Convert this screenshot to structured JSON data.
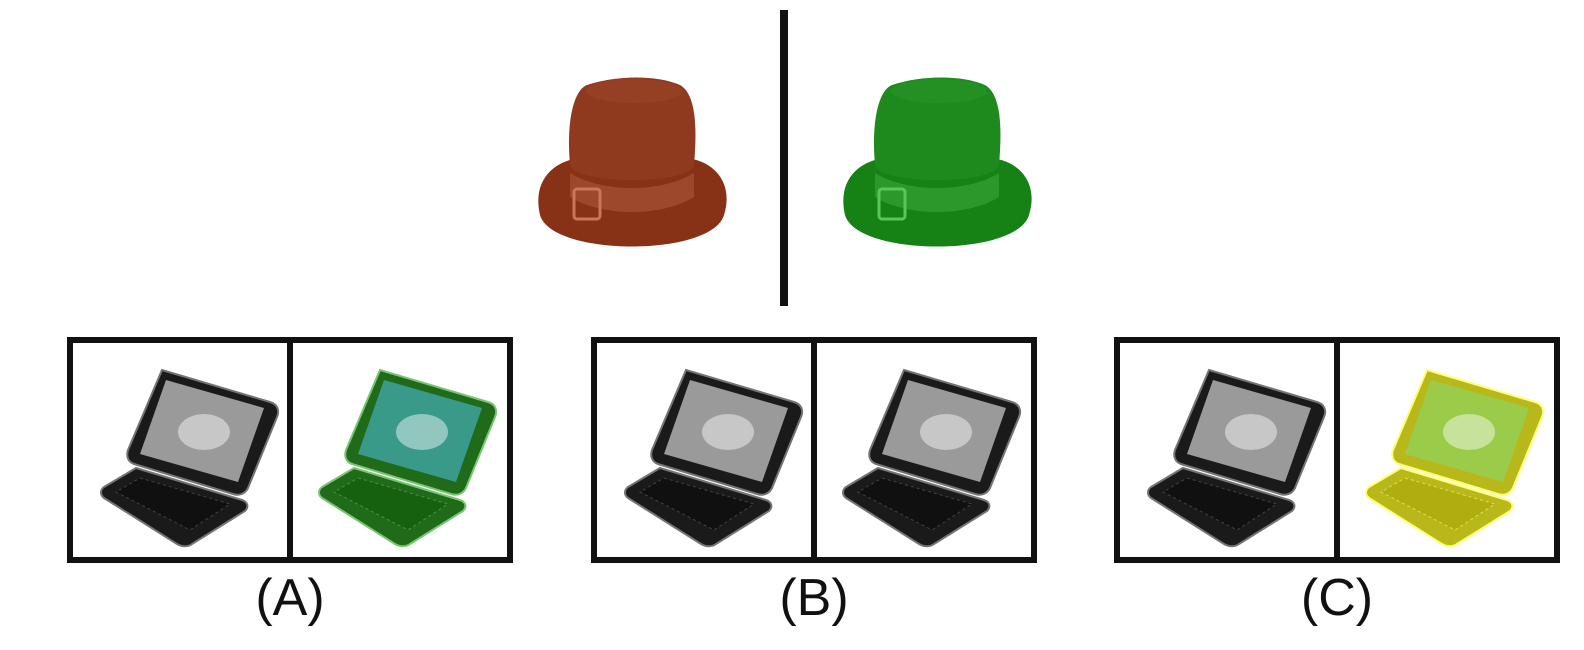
{
  "reference": {
    "left_icon": "top-hat-icon",
    "left_color": "#8f3a1f",
    "right_icon": "top-hat-icon",
    "right_color": "#1e8a1e"
  },
  "options": [
    {
      "label": "(A)",
      "left": {
        "icon": "laptop-icon",
        "color": "#1a1a1a",
        "screen": "#9a9a9a"
      },
      "right": {
        "icon": "laptop-icon",
        "color": "#1f6b1a",
        "screen": "#3a9a8a"
      }
    },
    {
      "label": "(B)",
      "left": {
        "icon": "laptop-icon",
        "color": "#1a1a1a",
        "screen": "#9a9a9a"
      },
      "right": {
        "icon": "laptop-icon",
        "color": "#1a1a1a",
        "screen": "#9a9a9a"
      }
    },
    {
      "label": "(C)",
      "left": {
        "icon": "laptop-icon",
        "color": "#1a1a1a",
        "screen": "#9a9a9a"
      },
      "right": {
        "icon": "laptop-icon",
        "color": "#b8b81a",
        "screen": "#9acc4a"
      }
    }
  ]
}
